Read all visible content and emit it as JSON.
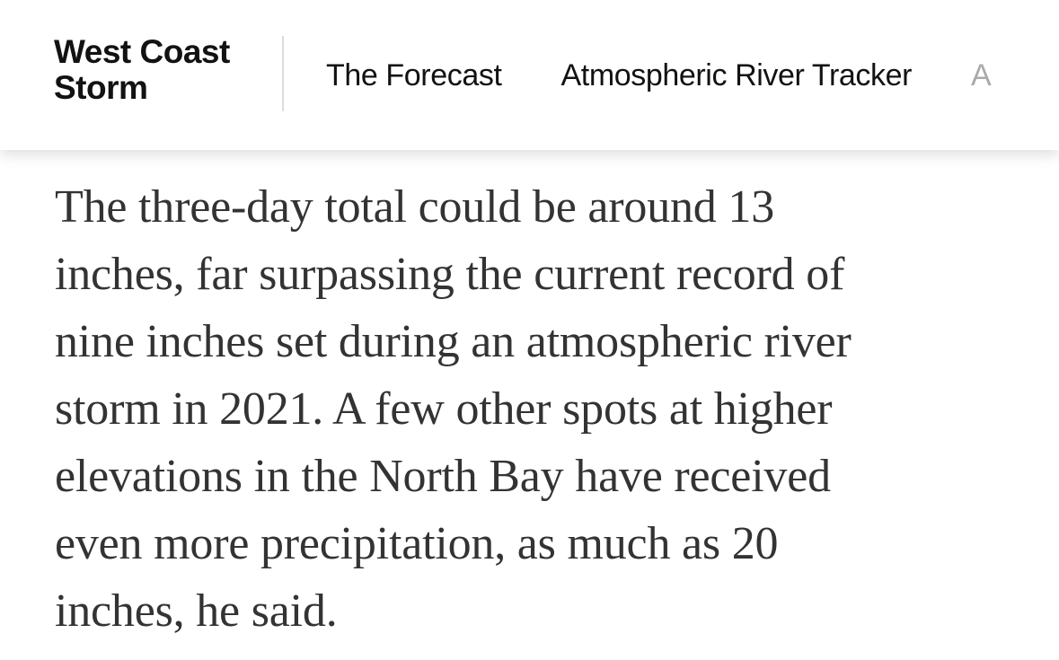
{
  "header": {
    "section_title_line1": "West Coast",
    "section_title_line2": "Storm",
    "nav": [
      {
        "label": "The Forecast"
      },
      {
        "label": "Atmospheric River Tracker"
      },
      {
        "label": "A"
      }
    ]
  },
  "article": {
    "lines": [
      "The three-day total could be around 13",
      "inches, far surpassing the current record of",
      "nine inches set during an atmospheric river",
      "storm in 2021. A few other spots at higher",
      "elevations in the North Bay have received",
      "even more precipitation, as much as 20",
      "inches, he said."
    ]
  }
}
